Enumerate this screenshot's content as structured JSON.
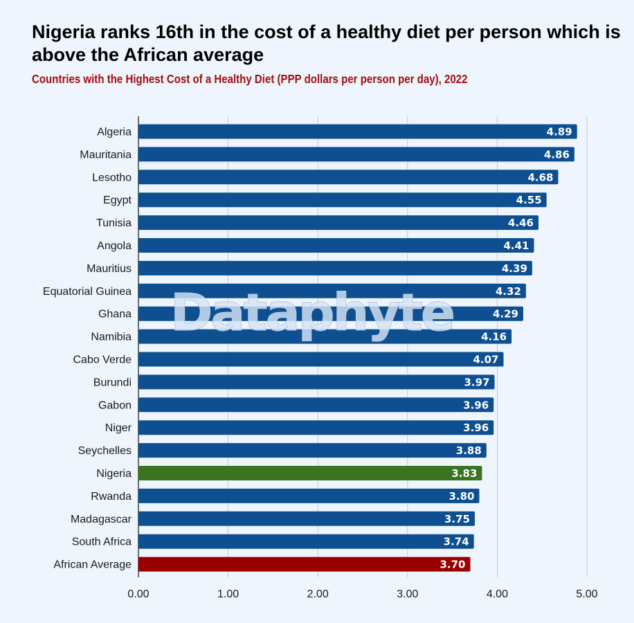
{
  "header": {
    "title": "Nigeria ranks 16th in the cost of a healthy diet per person which is above the African average",
    "subtitle": "Countries with the Highest Cost of a Healthy Diet (PPP dollars per person per day), 2022"
  },
  "watermark": "Dataphyte",
  "colors": {
    "background": "#eef5fc",
    "bar_default": "#0d4f91",
    "bar_nigeria": "#3a7420",
    "bar_average": "#990000",
    "subtitle": "#a10f0f"
  },
  "chart_data": {
    "type": "bar",
    "orientation": "horizontal",
    "title": "Countries with the Highest Cost of a Healthy Diet (PPP dollars per person per day), 2022",
    "categories": [
      "Algeria",
      "Mauritania",
      "Lesotho",
      "Egypt",
      "Tunisia",
      "Angola",
      "Mauritius",
      "Equatorial Guinea",
      "Ghana",
      "Namibia",
      "Cabo Verde",
      "Burundi",
      "Gabon",
      "Niger",
      "Seychelles",
      "Nigeria",
      "Rwanda",
      "Madagascar",
      "South Africa",
      "African Average"
    ],
    "values": [
      4.89,
      4.86,
      4.68,
      4.55,
      4.46,
      4.41,
      4.39,
      4.32,
      4.29,
      4.16,
      4.07,
      3.97,
      3.96,
      3.96,
      3.88,
      3.83,
      3.8,
      3.75,
      3.74,
      3.7
    ],
    "value_labels": [
      "4.89",
      "4.86",
      "4.68",
      "4.55",
      "4.46",
      "4.41",
      "4.39",
      "4.32",
      "4.29",
      "4.16",
      "4.07",
      "3.97",
      "3.96",
      "3.96",
      "3.88",
      "3.83",
      "3.80",
      "3.75",
      "3.74",
      "3.70"
    ],
    "highlights": {
      "Nigeria": "#3a7420",
      "African Average": "#990000"
    },
    "xlim": [
      0,
      5
    ],
    "xticks": [
      0,
      1,
      2,
      3,
      4,
      5
    ],
    "xtick_labels": [
      "0.00",
      "1.00",
      "2.00",
      "3.00",
      "4.00",
      "5.00"
    ],
    "xlabel": "",
    "ylabel": "",
    "grid": "vertical",
    "legend": "none"
  }
}
